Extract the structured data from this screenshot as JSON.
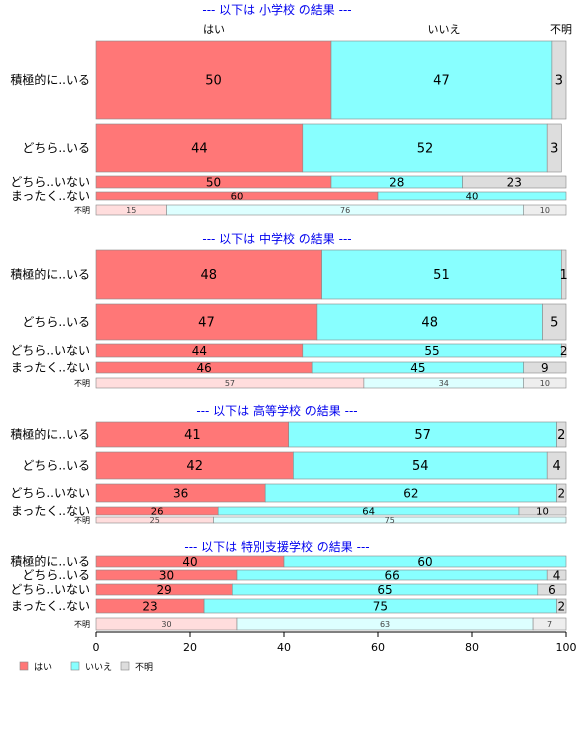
{
  "colors": {
    "yes": "#ff7777",
    "no": "#88ffff",
    "unknown": "#dddddd",
    "yes_light": "#ffdddd",
    "no_light": "#ddffff",
    "unknown_light": "#eeeeee",
    "title": "#0000ee",
    "stroke": "#888888"
  },
  "top_labels": {
    "yes": "はい",
    "no": "いいえ",
    "unknown": "不明"
  },
  "legend": {
    "yes": "はい",
    "no": "いいえ",
    "unknown": "不明"
  },
  "chart_data": {
    "type": "bar",
    "orientation": "horizontal-stacked-100",
    "series_names": [
      "はい",
      "いいえ",
      "不明"
    ],
    "xlim": [
      0,
      100
    ],
    "x_ticks": [
      "0",
      "20",
      "40",
      "60",
      "80",
      "100"
    ],
    "grid": false,
    "legend_position": "bottom-left",
    "panels": [
      {
        "title": "--- 以下は 小学校 の結果 ---",
        "rows": [
          {
            "label": "積極的に..いる",
            "values": [
              50,
              47,
              3
            ]
          },
          {
            "label": "どちら..いる",
            "values": [
              44,
              52,
              3
            ]
          },
          {
            "label": "どちら..いない",
            "values": [
              50,
              28,
              23
            ]
          },
          {
            "label": "まったく..ない",
            "values": [
              60,
              40,
              0
            ]
          },
          {
            "label": "不明",
            "values": [
              15,
              76,
              10
            ]
          }
        ]
      },
      {
        "title": "--- 以下は 中学校 の結果 ---",
        "rows": [
          {
            "label": "積極的に..いる",
            "values": [
              48,
              51,
              1
            ]
          },
          {
            "label": "どちら..いる",
            "values": [
              47,
              48,
              5
            ]
          },
          {
            "label": "どちら..いない",
            "values": [
              44,
              55,
              2
            ]
          },
          {
            "label": "まったく..ない",
            "values": [
              46,
              45,
              9
            ]
          },
          {
            "label": "不明",
            "values": [
              57,
              34,
              10
            ]
          }
        ]
      },
      {
        "title": "--- 以下は 高等学校 の結果 ---",
        "rows": [
          {
            "label": "積極的に..いる",
            "values": [
              41,
              57,
              2
            ]
          },
          {
            "label": "どちら..いる",
            "values": [
              42,
              54,
              4
            ]
          },
          {
            "label": "どちら..いない",
            "values": [
              36,
              62,
              2
            ]
          },
          {
            "label": "まったく..ない",
            "values": [
              26,
              64,
              10
            ]
          },
          {
            "label": "不明",
            "values": [
              25,
              75,
              0
            ]
          }
        ]
      },
      {
        "title": "--- 以下は 特別支援学校 の結果 ---",
        "rows": [
          {
            "label": "積極的に..いる",
            "values": [
              40,
              60,
              0
            ]
          },
          {
            "label": "どちら..いる",
            "values": [
              30,
              66,
              4
            ]
          },
          {
            "label": "どちら..いない",
            "values": [
              29,
              65,
              6
            ]
          },
          {
            "label": "まったく..ない",
            "values": [
              23,
              75,
              2
            ]
          },
          {
            "label": "不明",
            "values": [
              30,
              63,
              7
            ]
          }
        ]
      }
    ]
  }
}
